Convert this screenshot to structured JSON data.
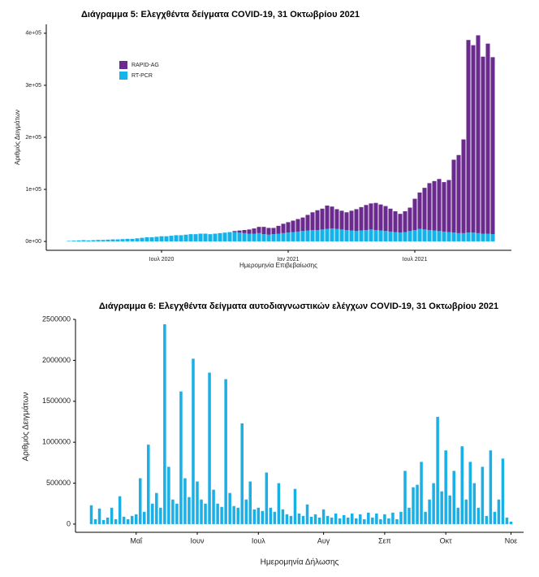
{
  "chart_data": [
    {
      "type": "stacked_bar",
      "title": "Διάγραμμα 5: Ελεγχθέντα δείγματα COVID-19, 31 Οκτωβρίου 2021",
      "xlabel": "Ημερομηνία Επιβεβαίωσης",
      "ylabel": "Αριθμός Δειγμάτων",
      "legend": "top-left",
      "categories": [
        null,
        null,
        null,
        null,
        null,
        null,
        null,
        null,
        null,
        null,
        null,
        null,
        null,
        null,
        null,
        null,
        null,
        null,
        null,
        "Ιουλ 2020",
        null,
        null,
        null,
        null,
        null,
        null,
        null,
        null,
        null,
        null,
        null,
        null,
        null,
        null,
        null,
        null,
        null,
        null,
        null,
        null,
        null,
        null,
        null,
        null,
        null,
        "Ιαν 2021",
        null,
        null,
        null,
        null,
        null,
        null,
        null,
        null,
        null,
        null,
        null,
        null,
        null,
        null,
        null,
        null,
        null,
        null,
        null,
        null,
        null,
        null,
        null,
        null,
        null,
        "Ιουλ 2021",
        null,
        null,
        null,
        null,
        null,
        null,
        null,
        null,
        null,
        null,
        null,
        null,
        null,
        null,
        null,
        null
      ],
      "series": [
        {
          "name": "RT-PCR",
          "color": "#14b4ea",
          "values": [
            1000,
            1500,
            2000,
            2500,
            2000,
            2500,
            3000,
            3000,
            3500,
            4000,
            4000,
            4500,
            5000,
            5000,
            6000,
            7000,
            8000,
            8000,
            9000,
            10000,
            10000,
            11000,
            12000,
            12000,
            13000,
            14000,
            14000,
            15000,
            15000,
            14000,
            15000,
            16000,
            17000,
            18000,
            18000,
            17000,
            16000,
            15000,
            15000,
            16000,
            14000,
            13000,
            14000,
            15000,
            16000,
            17000,
            18000,
            19000,
            20000,
            21000,
            22000,
            22000,
            23000,
            24000,
            25000,
            24000,
            23000,
            22000,
            21000,
            20000,
            21000,
            22000,
            23000,
            22000,
            21000,
            20000,
            19000,
            18000,
            17000,
            18000,
            20000,
            22000,
            24000,
            23000,
            22000,
            21000,
            20000,
            19000,
            18000,
            17000,
            16000,
            16000,
            17000,
            17000,
            16000,
            15000,
            15000,
            14000
          ]
        },
        {
          "name": "RAPID-AG",
          "color": "#6a2a8e",
          "values": [
            0,
            0,
            0,
            0,
            0,
            0,
            0,
            0,
            0,
            0,
            0,
            0,
            0,
            0,
            0,
            0,
            0,
            0,
            0,
            0,
            0,
            0,
            0,
            0,
            0,
            0,
            0,
            0,
            0,
            0,
            0,
            0,
            0,
            0,
            2000,
            4000,
            6000,
            8000,
            10000,
            12000,
            14000,
            13000,
            12000,
            15000,
            18000,
            20000,
            22000,
            24000,
            26000,
            30000,
            34000,
            38000,
            40000,
            45000,
            42000,
            38000,
            36000,
            34000,
            38000,
            42000,
            45000,
            48000,
            50000,
            52000,
            50000,
            48000,
            44000,
            40000,
            36000,
            40000,
            45000,
            60000,
            70000,
            80000,
            90000,
            95000,
            100000,
            95000,
            100000,
            140000,
            150000,
            180000,
            370000,
            360000,
            380000,
            340000,
            365000,
            340000
          ]
        }
      ],
      "ylim": [
        -17000,
        417000
      ],
      "yticks": [
        {
          "value": 0,
          "label": "0e+00"
        },
        {
          "value": 100000,
          "label": "1e+05"
        },
        {
          "value": 200000,
          "label": "2e+05"
        },
        {
          "value": 300000,
          "label": "3e+05"
        },
        {
          "value": 400000,
          "label": "4e+05"
        }
      ]
    },
    {
      "type": "bar",
      "title": "Διάγραμμα 6: Ελεγχθέντα δείγματα αυτοδιαγνωστικών ελέγχων COVID-19, 31 Οκτωβρίου 2021",
      "xlabel": "Ημερομηνία Δήλωσης",
      "ylabel": "Αριθμός Δειγμάτων",
      "color": "#1ab0e6",
      "categories": [
        null,
        null,
        null,
        null,
        null,
        null,
        null,
        null,
        null,
        null,
        null,
        "Μαΐ",
        null,
        null,
        null,
        null,
        null,
        null,
        null,
        null,
        null,
        null,
        null,
        null,
        null,
        null,
        "Ιουν",
        null,
        null,
        null,
        null,
        null,
        null,
        null,
        null,
        null,
        null,
        null,
        null,
        null,
        null,
        "Ιουλ",
        null,
        null,
        null,
        null,
        null,
        null,
        null,
        null,
        null,
        null,
        null,
        null,
        null,
        null,
        null,
        "Αυγ",
        null,
        null,
        null,
        null,
        null,
        null,
        null,
        null,
        null,
        null,
        null,
        null,
        null,
        null,
        "Σεπ",
        null,
        null,
        null,
        null,
        null,
        null,
        null,
        null,
        null,
        null,
        null,
        null,
        null,
        null,
        "Οκτ",
        null,
        null,
        null,
        null,
        null,
        null,
        null,
        null,
        null,
        null,
        null,
        null,
        null,
        null,
        null,
        "Νοε"
      ],
      "values": [
        230000,
        60000,
        190000,
        50000,
        80000,
        200000,
        60000,
        340000,
        90000,
        60000,
        100000,
        120000,
        560000,
        150000,
        970000,
        250000,
        380000,
        200000,
        2440000,
        700000,
        300000,
        250000,
        1620000,
        560000,
        330000,
        2020000,
        520000,
        300000,
        250000,
        1850000,
        420000,
        250000,
        210000,
        1770000,
        380000,
        220000,
        200000,
        1230000,
        300000,
        520000,
        180000,
        200000,
        160000,
        630000,
        200000,
        150000,
        500000,
        180000,
        120000,
        100000,
        430000,
        130000,
        100000,
        240000,
        90000,
        120000,
        80000,
        180000,
        100000,
        80000,
        130000,
        70000,
        110000,
        80000,
        130000,
        70000,
        120000,
        60000,
        140000,
        80000,
        130000,
        60000,
        120000,
        70000,
        140000,
        60000,
        150000,
        650000,
        200000,
        450000,
        480000,
        760000,
        150000,
        300000,
        500000,
        1310000,
        400000,
        900000,
        350000,
        650000,
        200000,
        950000,
        300000,
        760000,
        500000,
        200000,
        700000,
        100000,
        900000,
        150000,
        300000,
        800000,
        80000,
        30000
      ],
      "ylim": [
        -100000,
        2500000
      ],
      "yticks": [
        0,
        500000,
        1000000,
        1500000,
        2000000,
        2500000
      ]
    }
  ]
}
